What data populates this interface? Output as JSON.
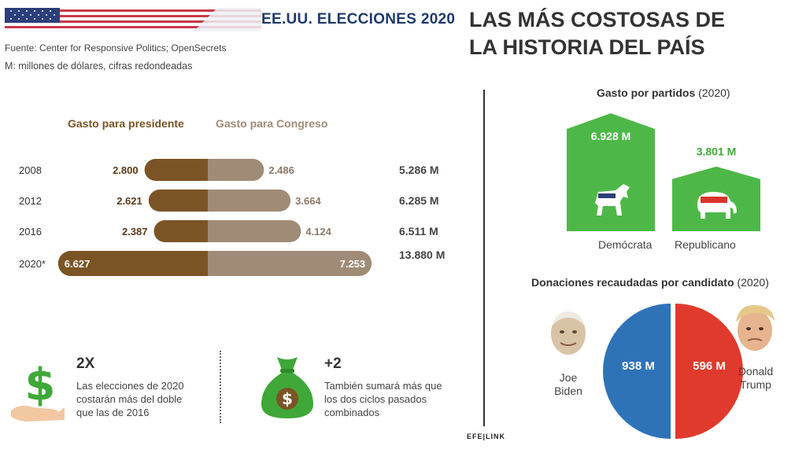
{
  "header": {
    "title": "EE.UU. ELECCIONES 2020",
    "source": "Fuente: Center for Responsive Politics; OpenSecrets",
    "units": "M: millones de dólares, cifras redondeadas",
    "main_title_line1": "LAS MÁS COSTOSAS DE",
    "main_title_line2": "LA HISTORIA DEL PAÍS"
  },
  "colors": {
    "presidente": "#7b5426",
    "congreso": "#a08b76",
    "democrata": "#4db848",
    "biden": "#2e73b8",
    "trump": "#e03a2c",
    "accent_green": "#3fa838"
  },
  "chart_data": [
    {
      "type": "bar",
      "orientation": "horizontal-diverging",
      "categories": [
        "2008",
        "2012",
        "2016",
        "2020*"
      ],
      "series": [
        {
          "name": "Gasto para presidente",
          "values": [
            2800,
            2621,
            2387,
            6627
          ],
          "labels": [
            "2.800",
            "2.621",
            "2.387",
            "6.627"
          ]
        },
        {
          "name": "Gasto para Congreso",
          "values": [
            2486,
            3664,
            4124,
            7253
          ],
          "labels": [
            "2.486",
            "3.664",
            "4.124",
            "7.253"
          ]
        }
      ],
      "totals": [
        5286,
        6285,
        6511,
        13880
      ],
      "total_labels": [
        "5.286 M",
        "6.285 M",
        "6.511 M",
        "13.880 M"
      ]
    },
    {
      "type": "bar",
      "title": "Gasto por partidos",
      "title_note": "(2020)",
      "categories": [
        "Demócrata",
        "Republicano"
      ],
      "values": [
        6928,
        3801
      ],
      "labels": [
        "6.928 M",
        "3.801 M"
      ]
    },
    {
      "type": "pie",
      "title": "Donaciones recaudadas por candidato",
      "title_note": "(2020)",
      "categories": [
        "Joe Biden",
        "Donald Trump"
      ],
      "values": [
        938,
        596
      ],
      "labels": [
        "938 M",
        "596 M"
      ]
    }
  ],
  "stats": [
    {
      "big": "2X",
      "line1": "Las elecciones de 2020",
      "line2": "costarán más del doble",
      "line3": "que las de 2016",
      "icon": "dollar-hand-icon"
    },
    {
      "big": "+2",
      "line1": "También sumará más que",
      "line2": "los dos ciclos pasados",
      "line3": "combinados",
      "icon": "money-bag-icon"
    }
  ],
  "candidates": {
    "biden_line1": "Joe",
    "biden_line2": "Biden",
    "trump_line1": "Donald",
    "trump_line2": "Trump"
  },
  "footer": {
    "logo": "EFE|LINK"
  }
}
